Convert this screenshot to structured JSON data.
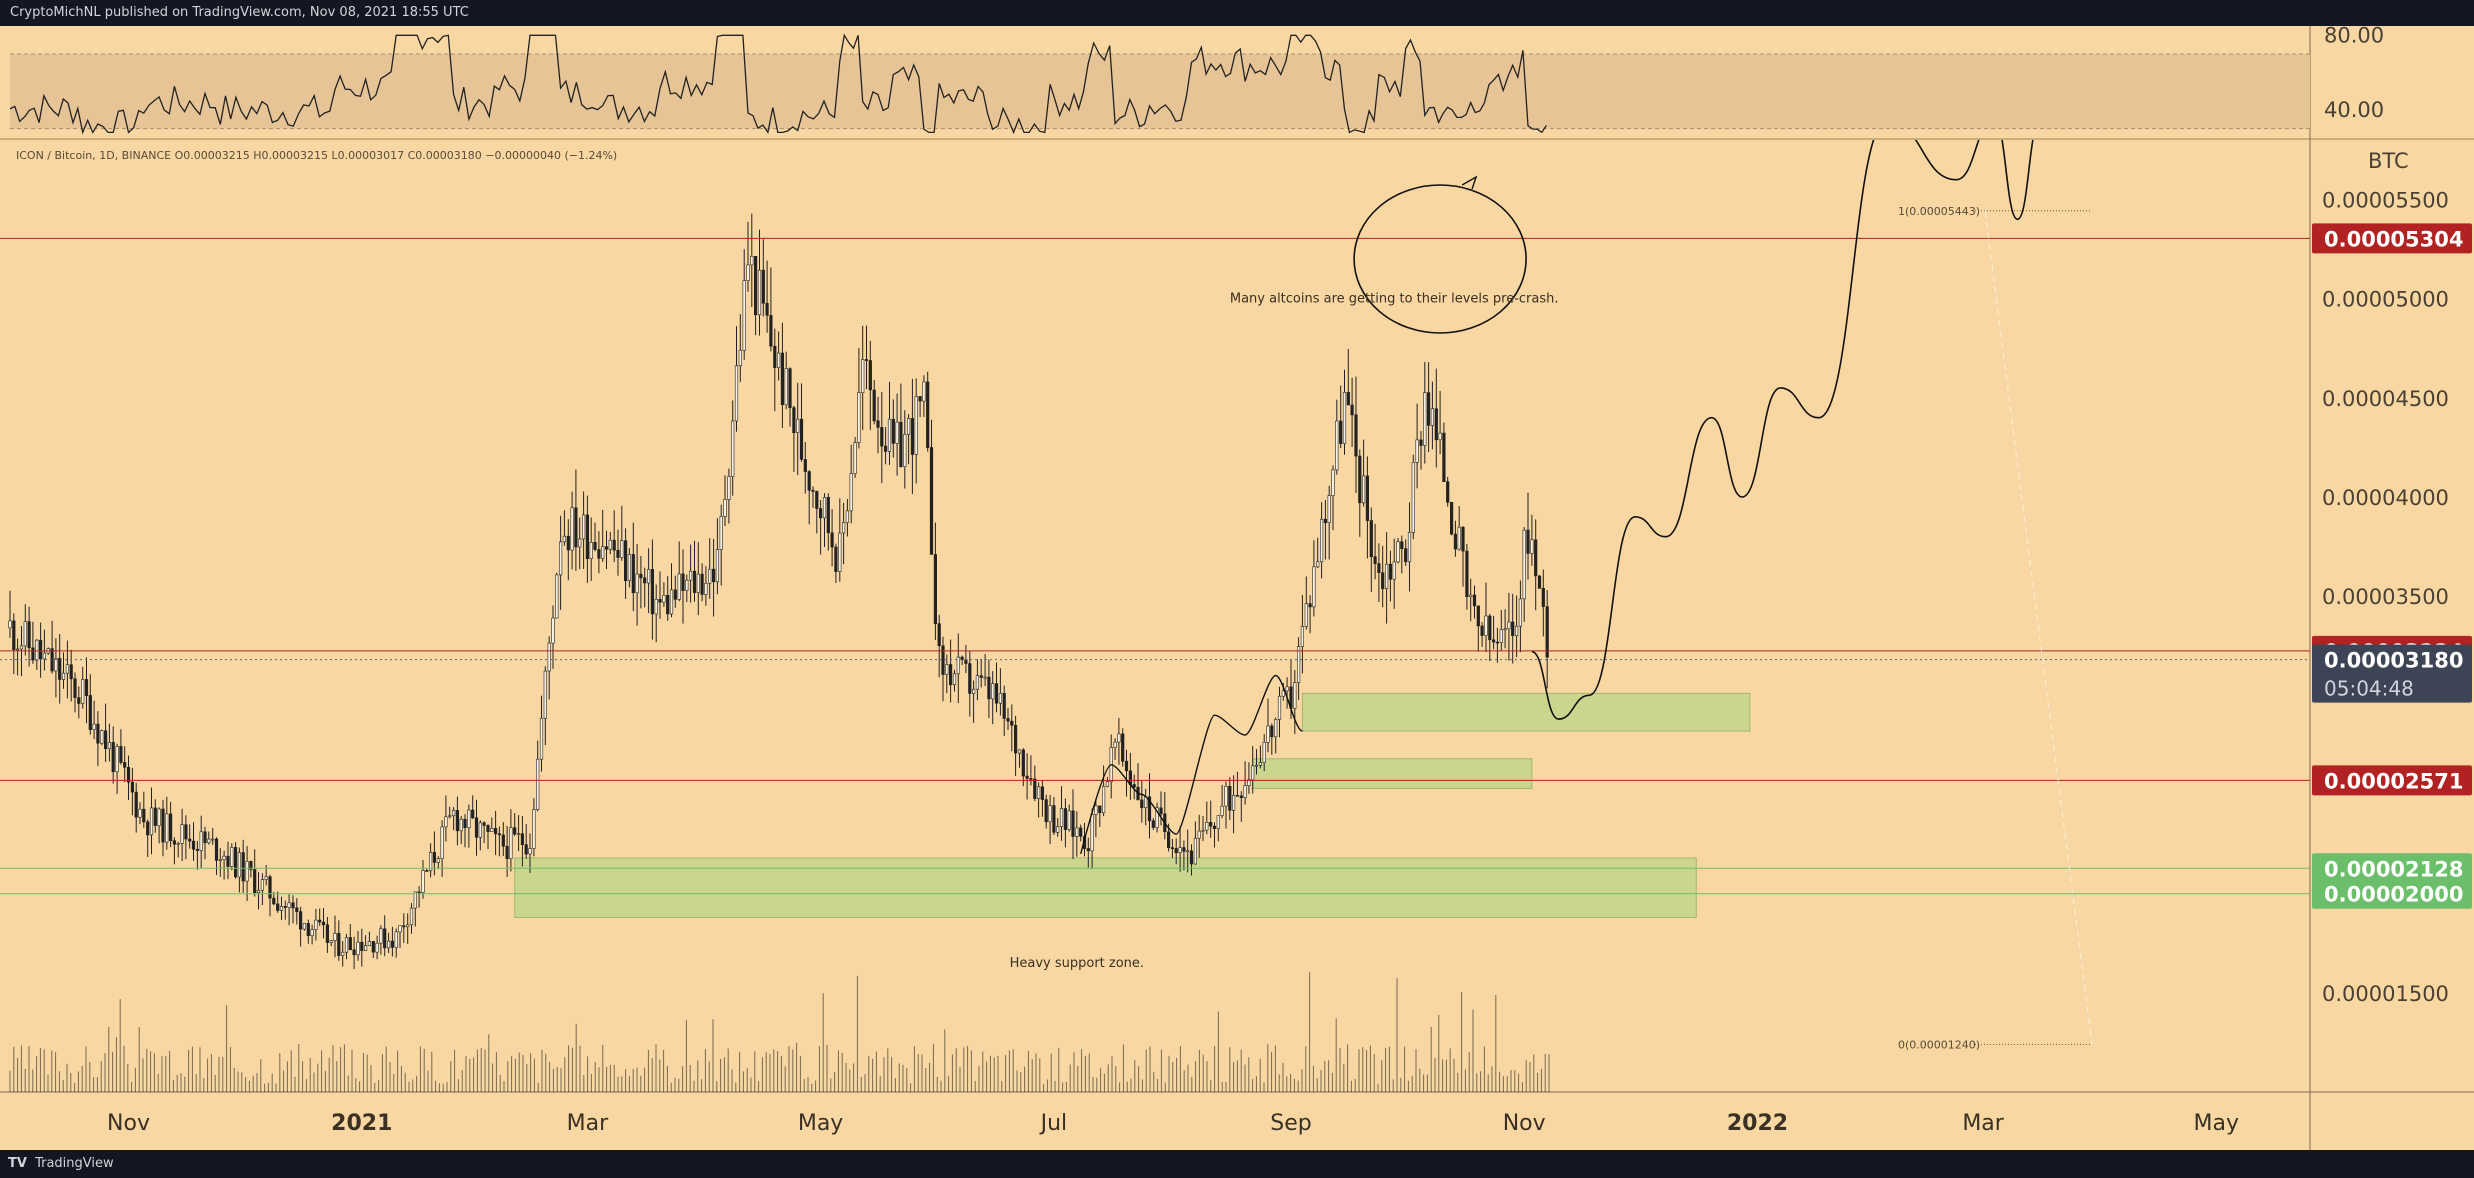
{
  "header": {
    "published_text": "CryptoMichNL published on TradingView.com, Nov 08, 2021 18:55 UTC"
  },
  "footer": {
    "logo_glyph": "TV",
    "brand": "TradingView"
  },
  "chart_data": {
    "type": "candlestick",
    "symbol_line": "ICON / Bitcoin, 1D, BINANCE  O0.00003215  H0.00003215  L0.00003017  C0.00003180  −0.00000040 (−1.24%)",
    "currency": "BTC",
    "colors": {
      "background": "#f8d7a2",
      "candle": "#222222",
      "volume": "#111111",
      "support_zone": "#c5d58a",
      "level_red": "#b22222",
      "level_green": "#6cbf6a",
      "last_price_label": "#3d4455",
      "rsi_band": "#e6c496",
      "axis_panel": "#f8d7a2",
      "drawing": "#111111"
    },
    "x_axis": {
      "labels": [
        "Nov",
        "2021",
        "Mar",
        "May",
        "Jul",
        "Sep",
        "Nov",
        "2022",
        "Mar",
        "May"
      ],
      "bold": [
        "2021",
        "2022"
      ]
    },
    "y_axis": {
      "range": [
        1e-05,
        5.8e-05
      ],
      "ticks": [
        "0.00005500",
        "0.00005000",
        "0.00004500",
        "0.00004000",
        "0.00003500",
        "0.00001500"
      ],
      "ticks_values": [
        5.5e-05,
        5e-05,
        4.5e-05,
        4e-05,
        3.5e-05,
        1.5e-05
      ]
    },
    "rsi": {
      "range": [
        25,
        85
      ],
      "band": [
        30,
        70
      ],
      "labels": [
        "80.00",
        "40.00"
      ],
      "label_values": [
        80,
        40
      ]
    },
    "levels": [
      {
        "price": 5.304e-05,
        "label": "0.00005304",
        "color": "red"
      },
      {
        "price": 3.224e-05,
        "label": "0.00003224",
        "color": "red"
      },
      {
        "price": 3.18e-05,
        "label": "0.00003180",
        "color": "dark",
        "countdown": "05:04:48"
      },
      {
        "price": 2.571e-05,
        "label": "0.00002571",
        "color": "red"
      },
      {
        "price": 2.128e-05,
        "label": "0.00002128",
        "color": "green"
      },
      {
        "price": 2e-05,
        "label": "0.00002000",
        "color": "green"
      }
    ],
    "fib": [
      {
        "price": 5.443e-05,
        "label": "1(0.00005443)"
      },
      {
        "price": 1.24e-05,
        "label": "0(0.00001240)"
      }
    ],
    "zones": [
      {
        "from": "2021-02-10",
        "to": "2021-12-16",
        "low": 1.88e-05,
        "high": 2.18e-05
      },
      {
        "from": "2021-08-22",
        "to": "2021-11-03",
        "low": 2.53e-05,
        "high": 2.68e-05
      },
      {
        "from": "2021-09-04",
        "to": "2021-12-30",
        "low": 2.82e-05,
        "high": 3.01e-05
      }
    ],
    "annotations": [
      {
        "text": "Many altcoins are getting to their levels pre-crash.",
        "date": "2021-09-28",
        "price": 4.98e-05
      },
      {
        "text": "Heavy support zone.",
        "date": "2021-07-07",
        "price": 1.63e-05
      }
    ],
    "ohlc": [
      {
        "date": "2020-10-01",
        "close": 3.34e-05
      },
      {
        "date": "2020-10-20",
        "close": 3e-05
      },
      {
        "date": "2020-11-05",
        "close": 2.38e-05
      },
      {
        "date": "2020-11-25",
        "close": 2.22e-05
      },
      {
        "date": "2020-12-10",
        "close": 1.97e-05
      },
      {
        "date": "2020-12-25",
        "close": 1.74e-05
      },
      {
        "date": "2021-01-10",
        "close": 1.78e-05
      },
      {
        "date": "2021-01-25",
        "close": 2.4e-05
      },
      {
        "date": "2021-02-06",
        "close": 2.24e-05
      },
      {
        "date": "2021-02-14",
        "close": 2.28e-05
      },
      {
        "date": "2021-02-22",
        "close": 3.85e-05
      },
      {
        "date": "2021-03-05",
        "close": 3.8e-05
      },
      {
        "date": "2021-03-20",
        "close": 3.45e-05
      },
      {
        "date": "2021-04-04",
        "close": 3.65e-05
      },
      {
        "date": "2021-04-12",
        "close": 5.2e-05
      },
      {
        "date": "2021-04-25",
        "close": 4.3e-05
      },
      {
        "date": "2021-05-06",
        "close": 3.7e-05
      },
      {
        "date": "2021-05-12",
        "close": 4.65e-05
      },
      {
        "date": "2021-05-20",
        "close": 4.2e-05
      },
      {
        "date": "2021-05-28",
        "close": 4.45e-05
      },
      {
        "date": "2021-06-01",
        "close": 3.15e-05
      },
      {
        "date": "2021-06-15",
        "close": 3e-05
      },
      {
        "date": "2021-06-30",
        "close": 2.4e-05
      },
      {
        "date": "2021-07-10",
        "close": 2.28e-05
      },
      {
        "date": "2021-07-17",
        "close": 2.75e-05
      },
      {
        "date": "2021-07-26",
        "close": 2.4e-05
      },
      {
        "date": "2021-08-06",
        "close": 2.2e-05
      },
      {
        "date": "2021-08-20",
        "close": 2.6e-05
      },
      {
        "date": "2021-09-01",
        "close": 3e-05
      },
      {
        "date": "2021-09-10",
        "close": 3.95e-05
      },
      {
        "date": "2021-09-15",
        "close": 4.5e-05
      },
      {
        "date": "2021-09-24",
        "close": 3.6e-05
      },
      {
        "date": "2021-10-01",
        "close": 3.75e-05
      },
      {
        "date": "2021-10-06",
        "close": 4.55e-05
      },
      {
        "date": "2021-10-12",
        "close": 4.05e-05
      },
      {
        "date": "2021-10-18",
        "close": 3.4e-05
      },
      {
        "date": "2021-10-24",
        "close": 3.25e-05
      },
      {
        "date": "2021-10-29",
        "close": 3.3e-05
      },
      {
        "date": "2021-11-02",
        "close": 3.85e-05
      },
      {
        "date": "2021-11-08",
        "close": 3.18e-05
      }
    ],
    "projection": [
      {
        "date": "2021-11-03",
        "price": 3.22e-05
      },
      {
        "date": "2021-11-10",
        "price": 2.88e-05
      },
      {
        "date": "2021-11-18",
        "price": 3e-05
      },
      {
        "date": "2021-11-30",
        "price": 3.9e-05
      },
      {
        "date": "2021-12-08",
        "price": 3.8e-05
      },
      {
        "date": "2021-12-20",
        "price": 4.4e-05
      },
      {
        "date": "2021-12-28",
        "price": 4e-05
      },
      {
        "date": "2022-01-07",
        "price": 4.55e-05
      },
      {
        "date": "2022-01-17",
        "price": 4.4e-05
      },
      {
        "date": "2022-02-04",
        "price": 5.9e-05
      },
      {
        "date": "2022-02-22",
        "price": 5.6e-05
      },
      {
        "date": "2022-03-04",
        "price": 5.9e-05
      },
      {
        "date": "2022-03-10",
        "price": 5.4e-05
      },
      {
        "date": "2022-03-16",
        "price": 5.9e-05
      }
    ]
  }
}
